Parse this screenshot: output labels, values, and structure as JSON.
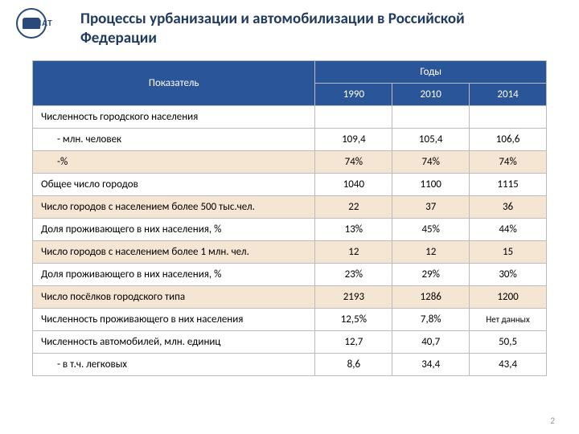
{
  "logo_text": "НИИАТ",
  "title": "Процессы урбанизации и автомобилизации в Российской Федерации",
  "table": {
    "header_indicator": "Показатель",
    "header_years": "Годы",
    "years": [
      "1990",
      "2010",
      "2014"
    ],
    "col_widths": [
      "55%",
      "15%",
      "15%",
      "15%"
    ],
    "rows": [
      {
        "label": "Численность городского населения",
        "vals": [
          "",
          "",
          ""
        ],
        "cls": "label",
        "alt": false
      },
      {
        "label": "- млн. человек",
        "vals": [
          "109,4",
          "105,4",
          "106,6"
        ],
        "cls": "indent1",
        "alt": false
      },
      {
        "label": "-%",
        "vals": [
          "74%",
          "74%",
          "74%"
        ],
        "cls": "indent1",
        "alt": true
      },
      {
        "label": "Общее число городов",
        "vals": [
          "1040",
          "1100",
          "1115"
        ],
        "cls": "label",
        "alt": false
      },
      {
        "label": "Число городов с населением более 500 тыс.чел.",
        "vals": [
          "22",
          "37",
          "36"
        ],
        "cls": "label",
        "alt": true
      },
      {
        "label": "Доля проживающего в них населения, %",
        "vals": [
          "13%",
          "45%",
          "44%"
        ],
        "cls": "label",
        "alt": false
      },
      {
        "label": "Число городов с населением более 1 млн. чел.",
        "vals": [
          "12",
          "12",
          "15"
        ],
        "cls": "label",
        "alt": true
      },
      {
        "label": "Доля проживающего в них населения, %",
        "vals": [
          "23%",
          "29%",
          "30%"
        ],
        "cls": "label",
        "alt": false
      },
      {
        "label": "Число посёлков городского типа",
        "vals": [
          "2193",
          "1286",
          "1200"
        ],
        "cls": "label",
        "alt": true
      },
      {
        "label": "Численность проживающего в них населения",
        "vals": [
          "12,5%",
          "7,8%",
          "Нет данных"
        ],
        "cls": "label",
        "alt": false,
        "small_last": true
      },
      {
        "label": "Численность автомобилей, млн. единиц",
        "vals": [
          "12,7",
          "40,7",
          "50,5"
        ],
        "cls": "label",
        "alt": false
      },
      {
        "label": "- в т.ч. легковых",
        "vals": [
          "8,6",
          "34,4",
          "43,4"
        ],
        "cls": "indent2",
        "alt": false
      }
    ]
  },
  "page_number": "2",
  "colors": {
    "header_bg": "#2a5599",
    "alt_row_bg": "#f5e6d3",
    "title_color": "#1f3a5f",
    "border": "#bbb"
  }
}
